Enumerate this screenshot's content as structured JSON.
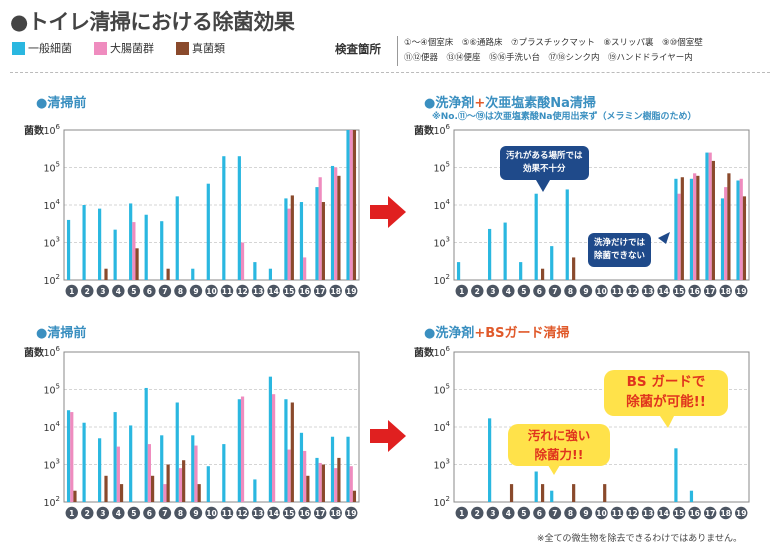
{
  "title": "●トイレ清掃における除菌効果",
  "legend": [
    {
      "label": "一般細菌",
      "color": "#2ab7e0"
    },
    {
      "label": "大腸菌群",
      "color": "#ef8cbf"
    },
    {
      "label": "真菌類",
      "color": "#8a4a2c"
    }
  ],
  "locations": {
    "label": "検査箇所",
    "line1": "①〜④個室床　⑤⑥通路床　⑦プラスチックマット　⑧スリッパ裏　⑨⑩個室壁",
    "line2": "⑪⑫便器　⑬⑭便座　⑮⑯手洗い台　⑰⑱シンク内　⑲ハンドドライヤー内"
  },
  "headings": {
    "tl": "●清掃前",
    "tr_a": "●洗浄剤",
    "tr_plus": "+",
    "tr_b": "次亜塩素酸Na清掃",
    "tr_note": "※No.⑪〜⑲は次亜塩素酸Na使用出来ず（メラミン樹脂のため）",
    "bl": "●清掃前",
    "br_a": "●洗浄剤",
    "br_plus": "+",
    "br_b": "BSガード清掃"
  },
  "bubbles": {
    "dirty1": "汚れがある場所では",
    "dirty2": "効果不十分",
    "wash1": "洗浄だけでは",
    "wash2": "除菌できない",
    "strong1": "汚れに強い",
    "strong2": "除菌力!!",
    "bs1": "BS ガードで",
    "bs2": "除菌が可能!!"
  },
  "footnote": "※全ての微生物を除去できるわけではありません。",
  "chart_data": [
    {
      "id": "top-left",
      "type": "bar",
      "title": "清掃前",
      "ylabel": "菌数",
      "yscale": "log",
      "ylim": [
        100,
        1000000
      ],
      "categories": [
        "1",
        "2",
        "3",
        "4",
        "5",
        "6",
        "7",
        "8",
        "9",
        "10",
        "11",
        "12",
        "13",
        "14",
        "15",
        "16",
        "17",
        "18",
        "19"
      ],
      "series": [
        {
          "name": "一般細菌",
          "values": [
            4000,
            10000,
            8000,
            2200,
            11000,
            5500,
            3700,
            17000,
            200,
            37000,
            200000,
            200000,
            300,
            200,
            15000,
            12000,
            30000,
            110000,
            1000000
          ]
        },
        {
          "name": "大腸菌群",
          "values": [
            null,
            null,
            null,
            null,
            3500,
            null,
            null,
            null,
            null,
            null,
            null,
            1000,
            null,
            null,
            8000,
            400,
            55000,
            100000,
            1000000
          ]
        },
        {
          "name": "真菌類",
          "values": [
            null,
            null,
            200,
            null,
            700,
            null,
            200,
            null,
            null,
            null,
            null,
            null,
            null,
            null,
            18000,
            null,
            12000,
            60000,
            1000000
          ]
        }
      ]
    },
    {
      "id": "top-right",
      "type": "bar",
      "title": "洗浄剤+次亜塩素酸Na清掃",
      "ylabel": "菌数",
      "yscale": "log",
      "ylim": [
        100,
        1000000
      ],
      "categories": [
        "1",
        "2",
        "3",
        "4",
        "5",
        "6",
        "7",
        "8",
        "9",
        "10",
        "11",
        "12",
        "13",
        "14",
        "15",
        "16",
        "17",
        "18",
        "19"
      ],
      "series": [
        {
          "name": "一般細菌",
          "values": [
            300,
            null,
            2300,
            3400,
            300,
            20000,
            800,
            26000,
            null,
            null,
            null,
            null,
            null,
            null,
            50000,
            50000,
            250000,
            15000,
            45000
          ]
        },
        {
          "name": "大腸菌群",
          "values": [
            null,
            null,
            null,
            null,
            null,
            null,
            null,
            null,
            null,
            null,
            null,
            null,
            null,
            null,
            20000,
            70000,
            250000,
            30000,
            50000
          ]
        },
        {
          "name": "真菌類",
          "values": [
            null,
            null,
            null,
            null,
            null,
            200,
            null,
            400,
            null,
            null,
            null,
            null,
            null,
            null,
            55000,
            60000,
            150000,
            70000,
            17000
          ]
        }
      ]
    },
    {
      "id": "bottom-left",
      "type": "bar",
      "title": "清掃前",
      "ylabel": "菌数",
      "yscale": "log",
      "ylim": [
        100,
        1000000
      ],
      "categories": [
        "1",
        "2",
        "3",
        "4",
        "5",
        "6",
        "7",
        "8",
        "9",
        "10",
        "11",
        "12",
        "13",
        "14",
        "15",
        "16",
        "17",
        "18",
        "19"
      ],
      "series": [
        {
          "name": "一般細菌",
          "values": [
            28000,
            13000,
            5000,
            25000,
            11000,
            110000,
            6000,
            45000,
            6000,
            900,
            3500,
            55000,
            400,
            220000,
            55000,
            7000,
            1500,
            5500,
            5500
          ]
        },
        {
          "name": "大腸菌群",
          "values": [
            25000,
            null,
            null,
            3000,
            null,
            3500,
            300,
            800,
            3200,
            null,
            null,
            65000,
            null,
            75000,
            2500,
            2300,
            1100,
            800,
            900
          ]
        },
        {
          "name": "真菌類",
          "values": [
            200,
            null,
            500,
            300,
            null,
            500,
            1000,
            1300,
            300,
            null,
            null,
            null,
            null,
            null,
            45000,
            500,
            1000,
            1500,
            200
          ]
        }
      ]
    },
    {
      "id": "bottom-right",
      "type": "bar",
      "title": "洗浄剤+BSガード清掃",
      "ylabel": "菌数",
      "yscale": "log",
      "ylim": [
        100,
        1000000
      ],
      "categories": [
        "1",
        "2",
        "3",
        "4",
        "5",
        "6",
        "7",
        "8",
        "9",
        "10",
        "11",
        "12",
        "13",
        "14",
        "15",
        "16",
        "17",
        "18",
        "19"
      ],
      "series": [
        {
          "name": "一般細菌",
          "values": [
            null,
            null,
            17000,
            null,
            null,
            650,
            200,
            null,
            null,
            null,
            null,
            null,
            null,
            null,
            2700,
            200,
            null,
            null,
            null
          ]
        },
        {
          "name": "大腸菌群",
          "values": [
            null,
            null,
            null,
            null,
            null,
            null,
            null,
            null,
            null,
            null,
            null,
            null,
            null,
            null,
            null,
            null,
            null,
            null,
            null
          ]
        },
        {
          "name": "真菌類",
          "values": [
            null,
            null,
            null,
            300,
            null,
            300,
            null,
            300,
            null,
            300,
            null,
            null,
            null,
            null,
            null,
            null,
            null,
            null,
            null
          ]
        }
      ]
    }
  ]
}
